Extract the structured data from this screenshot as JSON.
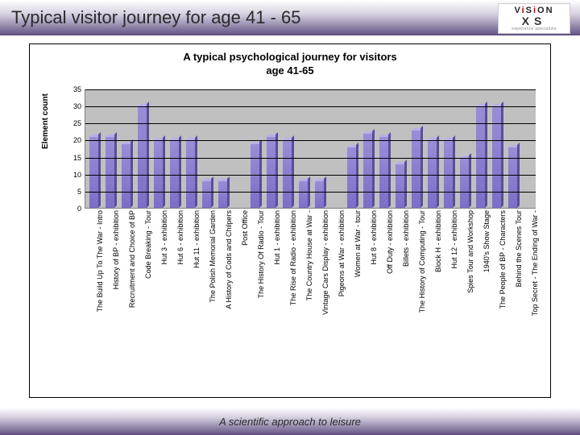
{
  "header": {
    "title": "Typical visitor journey for age 41 - 65"
  },
  "logo": {
    "line1_pre": "V",
    "line1_accent": "i",
    "line1_mid": "S",
    "line1_accent2": "i",
    "line1_post": "ON",
    "line2": "XS",
    "sub": "experience specialists"
  },
  "chart": {
    "type": "bar",
    "title_line1": "A typical psychological journey for visitors",
    "title_line2": "age 41-65",
    "y_axis_label": "Element count",
    "ylim": [
      0,
      35
    ],
    "ytick_step": 5,
    "yticks": [
      0,
      5,
      10,
      15,
      20,
      25,
      30,
      35
    ],
    "plot_bg": "#c0c0c0",
    "grid_color": "#000000",
    "bar_color": "#7a6ec8",
    "bar_top_color": "#b8b0e8",
    "bar_side_color": "#5a4e98",
    "title_fontsize": 13,
    "label_fontsize": 10,
    "tick_fontsize": 9,
    "categories": [
      "The Build Up To The War - Intro",
      "History of BP - exhibition",
      "Recruitment and Choice of BP",
      "Code Breaking - Tour",
      "Hut 3 - exhibition",
      "Hut 6 - exhibition",
      "Hut 11 - exhibition",
      "The Polish Memorial Garden",
      "A History of Cods and Chilpers",
      "Post Office",
      "The History Of Radio - Tour",
      "Hut 1 - exhibition",
      "The Rise of Radio - exhibition",
      "The Country House at War -",
      "Vintage Cars Display - exhibition",
      "Pigeons at War - exhibition",
      "Women at War - tour",
      "Hut 8 - exhibition",
      "Off Duty - exhibition",
      "Billets - exhibition",
      "The History of Computing - Tour",
      "Block H - exhibition",
      "Hut 12 - exhibition",
      "Spies Tour and Workshop",
      "1940's Show Stage",
      "The People of BP - Characters",
      "Behind the Scenes Tour",
      "Top Secret - The Ending of War -"
    ],
    "values": [
      21,
      21,
      19,
      30,
      20,
      20,
      20,
      8,
      8,
      0,
      19,
      21,
      20,
      8,
      8,
      0,
      18,
      22,
      21,
      13,
      23,
      20,
      20,
      15,
      30,
      30,
      18,
      0
    ]
  },
  "footer": {
    "text": "A scientific approach to leisure"
  },
  "colors": {
    "header_gradient_top": "#ffffff",
    "header_gradient_mid": "#d8d0e0",
    "header_gradient_bottom": "#5a4a7a",
    "page_bg": "#ffffff"
  }
}
